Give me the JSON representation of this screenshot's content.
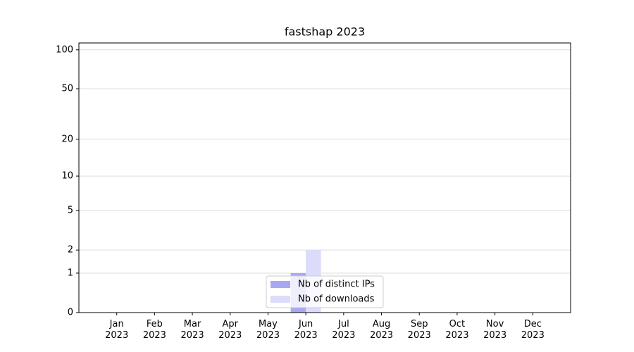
{
  "chart_data": {
    "type": "bar",
    "title": "fastshap 2023",
    "categories": [
      "Jan\n2023",
      "Feb\n2023",
      "Mar\n2023",
      "Apr\n2023",
      "May\n2023",
      "Jun\n2023",
      "Jul\n2023",
      "Aug\n2023",
      "Sep\n2023",
      "Oct\n2023",
      "Nov\n2023",
      "Dec\n2023"
    ],
    "series": [
      {
        "name": "Nb of distinct IPs",
        "color": "#a8a8f2",
        "values": [
          0,
          0,
          0,
          0,
          0,
          1,
          0,
          0,
          0,
          0,
          0,
          0
        ]
      },
      {
        "name": "Nb of downloads",
        "color": "#dcdcfa",
        "values": [
          0,
          0,
          0,
          0,
          0,
          2,
          0,
          0,
          0,
          0,
          0,
          0
        ]
      }
    ],
    "yscale": "log1p",
    "ylim": [
      0,
      113
    ],
    "yticks": [
      0,
      1,
      2,
      5,
      10,
      20,
      50,
      100
    ],
    "grid": true,
    "legend": "lower center"
  }
}
